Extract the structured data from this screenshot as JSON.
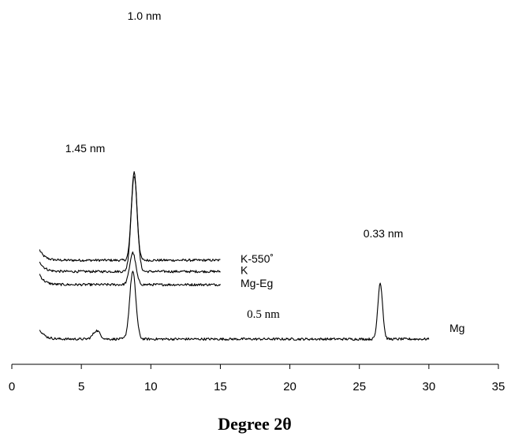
{
  "chart_data": {
    "type": "line",
    "xlabel": "Degree 2θ",
    "ylabel": "",
    "xlim": [
      0,
      35
    ],
    "xticks": [
      0,
      5,
      10,
      15,
      20,
      25,
      30,
      35
    ],
    "grid": false,
    "legend": "none",
    "series": [
      {
        "name": "K-550˚",
        "x_range": [
          2,
          15
        ],
        "baseline_offset": 4.2,
        "peaks": [
          {
            "x": 8.8,
            "height": 4.7,
            "width": 0.2
          }
        ]
      },
      {
        "name": "K",
        "x_range": [
          2,
          15
        ],
        "baseline_offset": 3.6,
        "peaks": [
          {
            "x": 8.8,
            "height": 5.1,
            "width": 0.22
          }
        ]
      },
      {
        "name": "Mg-Eg",
        "x_range": [
          2,
          15
        ],
        "baseline_offset": 2.9,
        "peaks": [
          {
            "x": 8.7,
            "height": 1.7,
            "width": 0.22
          }
        ]
      },
      {
        "name": "Mg",
        "x_range": [
          2,
          30
        ],
        "baseline_offset": 0.0,
        "peaks": [
          {
            "x": 6.1,
            "height": 0.45,
            "width": 0.25
          },
          {
            "x": 8.7,
            "height": 3.6,
            "width": 0.22
          },
          {
            "x": 26.5,
            "height": 3.0,
            "width": 0.17
          }
        ]
      }
    ],
    "annotations": [
      {
        "text": "1.0 nm",
        "x": 8.8
      },
      {
        "text": "1.45 nm",
        "x": 5.7
      },
      {
        "text": "0.33 nm",
        "x": 26.4
      },
      {
        "text": "0.5 nm",
        "x": 19.4
      }
    ]
  }
}
